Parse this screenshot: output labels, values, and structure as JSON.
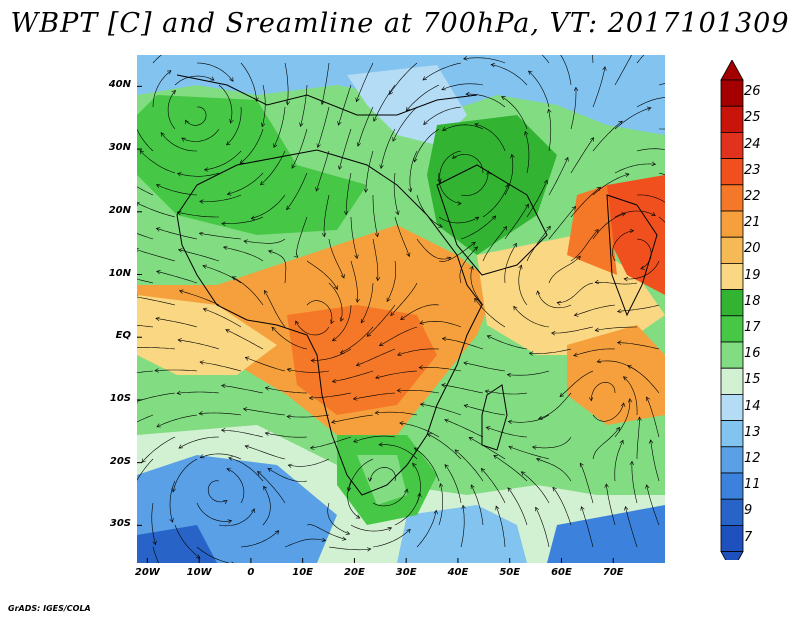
{
  "title": "WBPT [C] and Sreamline at 700hPa, VT: 2017101309",
  "credit": "GrADS: IGES/COLA",
  "lat_labels": [
    "40N",
    "30N",
    "20N",
    "10N",
    "EQ",
    "10S",
    "20S",
    "30S"
  ],
  "lat_values": [
    40,
    30,
    20,
    10,
    0,
    -10,
    -20,
    -30
  ],
  "lon_labels": [
    "20W",
    "10W",
    "0",
    "10E",
    "20E",
    "30E",
    "40E",
    "50E",
    "60E",
    "70E"
  ],
  "lon_values": [
    -20,
    -10,
    0,
    10,
    20,
    30,
    40,
    50,
    60,
    70
  ],
  "colorbar": {
    "labels": [
      "26",
      "25",
      "24",
      "23",
      "22",
      "21",
      "20",
      "19",
      "18",
      "17",
      "16",
      "15",
      "14",
      "13",
      "12",
      "11",
      "9",
      "7"
    ],
    "colors": [
      "#a50000",
      "#c8140a",
      "#e1321e",
      "#f0501e",
      "#f57828",
      "#f5a03c",
      "#f5b955",
      "#fad782",
      "#32b432",
      "#46c846",
      "#82dc82",
      "#d2f0d2",
      "#b4dcf5",
      "#82c3f0",
      "#5aa0e6",
      "#3c82dc",
      "#2864c8",
      "#1e50be"
    ]
  }
}
